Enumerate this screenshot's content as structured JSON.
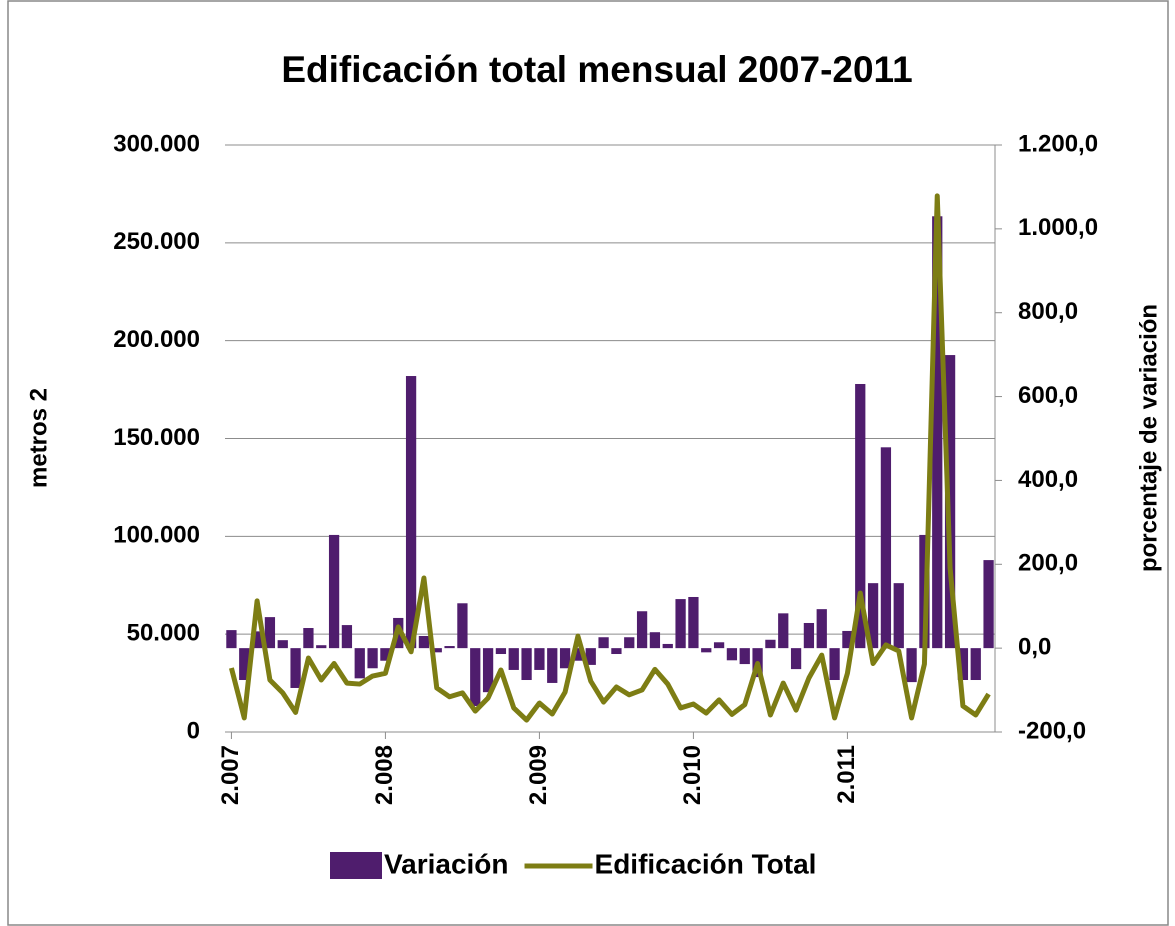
{
  "chart_data": {
    "type": "bar-line",
    "title": "Edificación total mensual 2007-2011",
    "ylabel": "metros 2",
    "y2label": "porcentaje de variación",
    "categories": [
      "2.007",
      null,
      null,
      null,
      null,
      null,
      null,
      null,
      null,
      null,
      null,
      null,
      "2.008",
      null,
      null,
      null,
      null,
      null,
      null,
      null,
      null,
      null,
      null,
      null,
      "2.009",
      null,
      null,
      null,
      null,
      null,
      null,
      null,
      null,
      null,
      null,
      null,
      "2.010",
      null,
      null,
      null,
      null,
      null,
      null,
      null,
      null,
      null,
      null,
      null,
      "2.011",
      null,
      null,
      null,
      null,
      null,
      null,
      null,
      null,
      null,
      null,
      null
    ],
    "series": [
      {
        "name": "Variación",
        "type": "bar",
        "axis": "y2",
        "color": "#4f1d6d",
        "values": [
          43,
          -76,
          40,
          74,
          19,
          -95,
          48,
          7,
          270,
          55,
          -72,
          -48,
          -30,
          72,
          649,
          29,
          -10,
          5,
          107,
          -138,
          -105,
          -14,
          -52,
          -76,
          -52,
          -83,
          -48,
          -30,
          -40,
          26,
          -14,
          26,
          88,
          38,
          10,
          117,
          122,
          -10,
          14,
          -29,
          -38,
          -69,
          20,
          83,
          -50,
          60,
          93,
          -76,
          41,
          630,
          155,
          479,
          155,
          -81,
          270,
          1030,
          699,
          -76,
          -76,
          210
        ]
      },
      {
        "name": "Edificación Total",
        "type": "line",
        "color": "#7d7d14",
        "values": [
          32700,
          7200,
          67000,
          26600,
          20000,
          10000,
          37800,
          26600,
          35000,
          25000,
          24500,
          28600,
          30000,
          53700,
          41000,
          78700,
          22500,
          18000,
          20000,
          10700,
          17400,
          31700,
          12300,
          6100,
          14800,
          9200,
          20400,
          49000,
          26000,
          15300,
          23000,
          19000,
          21500,
          32000,
          24500,
          12300,
          14300,
          9700,
          16400,
          9000,
          14000,
          35000,
          8700,
          25000,
          11200,
          27600,
          39300,
          7200,
          30000,
          71000,
          35000,
          44500,
          41400,
          7200,
          34700,
          274000,
          83800,
          13300,
          8700,
          19400
        ]
      }
    ],
    "ylim": [
      0,
      300000
    ],
    "yticks": [
      {
        "value": 0,
        "label": "0"
      },
      {
        "value": 50000,
        "label": "50.000"
      },
      {
        "value": 100000,
        "label": "100.000"
      },
      {
        "value": 150000,
        "label": "150.000"
      },
      {
        "value": 200000,
        "label": "200.000"
      },
      {
        "value": 250000,
        "label": "250.000"
      },
      {
        "value": 300000,
        "label": "300.000"
      }
    ],
    "y2lim": [
      -200,
      1200
    ],
    "y2ticks": [
      {
        "value": -200,
        "label": "-200,0"
      },
      {
        "value": 0,
        "label": "0,0"
      },
      {
        "value": 200,
        "label": "200,0"
      },
      {
        "value": 400,
        "label": "400,0"
      },
      {
        "value": 600,
        "label": "600,0"
      },
      {
        "value": 800,
        "label": "800,0"
      },
      {
        "value": 1000,
        "label": "1.000,0"
      },
      {
        "value": 1200,
        "label": "1.200,0"
      }
    ],
    "grid": true,
    "legend": "bottom"
  }
}
